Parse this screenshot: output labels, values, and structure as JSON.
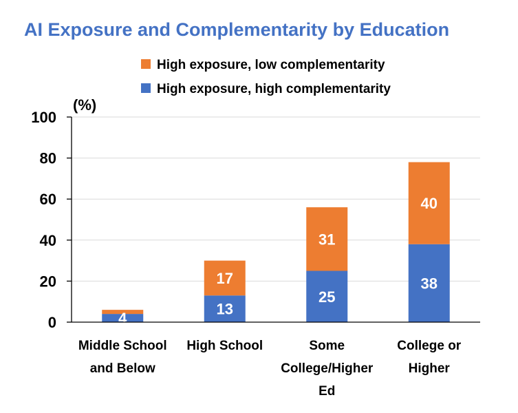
{
  "chart_data": {
    "type": "bar",
    "stacked": true,
    "title": "AI Exposure and Complementarity by Education",
    "ylabel": "(%)",
    "xlabel": "",
    "ylim": [
      0,
      100
    ],
    "yticks": [
      0,
      20,
      40,
      60,
      80,
      100
    ],
    "grid": true,
    "legend_position": "top-center",
    "categories": [
      [
        "Middle School",
        "and Below"
      ],
      [
        "High School"
      ],
      [
        "Some",
        "College/Higher",
        "Ed"
      ],
      [
        "College or",
        "Higher"
      ]
    ],
    "series": [
      {
        "name": "High exposure, high complementarity",
        "color": "#4472C4",
        "values": [
          4,
          13,
          25,
          38
        ]
      },
      {
        "name": "High exposure, low complementarity",
        "color": "#ED7D31",
        "values": [
          2,
          17,
          31,
          40
        ]
      }
    ],
    "data_labels": [
      [
        "4",
        "13",
        "25",
        "38"
      ],
      [
        "",
        "17",
        "31",
        "40"
      ]
    ],
    "legend_order": [
      1,
      0
    ]
  },
  "colors": {
    "title": "#4472C4",
    "grid": "#d9d9d9",
    "axis": "#000000"
  }
}
